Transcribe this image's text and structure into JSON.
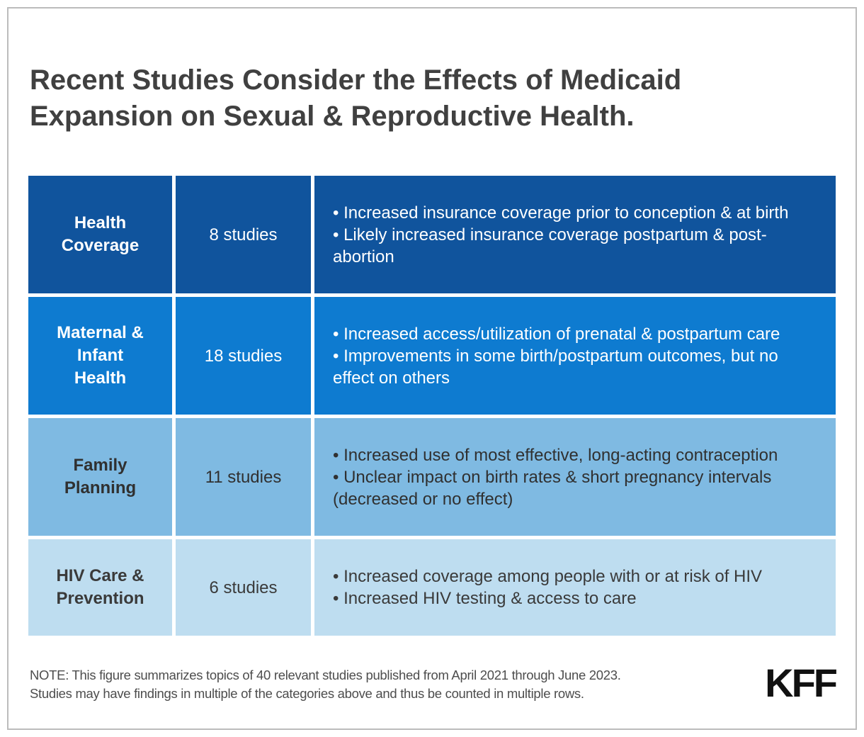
{
  "page": {
    "title": "Recent Studies Consider the Effects of Medicaid Expansion on Sexual & Reproductive Health.",
    "note_lines": [
      "NOTE: This figure summarizes topics of 40 relevant studies published from April 2021 through June 2023.",
      "Studies may have findings in multiple of the categories above and thus be counted in multiple rows."
    ],
    "logo_text": "KFF"
  },
  "colors": {
    "row_backgrounds": [
      "#10549D",
      "#0E7BD0",
      "#7FBAE2",
      "#BEDDF0"
    ],
    "row_text_colors": [
      "#FFFFFF",
      "#FFFFFF",
      "#303030",
      "#3A3A3A"
    ],
    "title_color": "#404040",
    "note_color": "#4D4D4D",
    "logo_color": "#111111",
    "frame_border": "#BCBCBC"
  },
  "table": {
    "rows": [
      {
        "category": "Health Coverage",
        "studies_label": "8 studies",
        "findings": [
          "• Increased insurance coverage prior to conception & at birth",
          "• Likely increased insurance coverage postpartum & post-abortion"
        ]
      },
      {
        "category": "Maternal & Infant Health",
        "studies_label": "18 studies",
        "findings": [
          "• Increased access/utilization of prenatal & postpartum care",
          "• Improvements in some birth/postpartum outcomes, but no effect on others"
        ]
      },
      {
        "category": "Family Planning",
        "studies_label": "11 studies",
        "findings": [
          "• Increased use of most effective, long-acting contraception",
          "• Unclear impact on birth rates & short pregnancy intervals (decreased or no effect)"
        ]
      },
      {
        "category": "HIV Care & Prevention",
        "studies_label": "6 studies",
        "findings": [
          "• Increased coverage among people with or at risk of HIV",
          "• Increased HIV testing & access to care"
        ]
      }
    ]
  },
  "chart_data": {
    "type": "table",
    "title": "Recent Studies Consider the Effects of Medicaid Expansion on Sexual & Reproductive Health.",
    "categories": [
      "Health Coverage",
      "Maternal & Infant Health",
      "Family Planning",
      "HIV Care & Prevention"
    ],
    "values": [
      8,
      18,
      11,
      6
    ],
    "value_unit": "studies",
    "total_studies": 40,
    "study_period": "April 2021 through June 2023",
    "findings_by_category": {
      "Health Coverage": [
        "Increased insurance coverage prior to conception & at birth",
        "Likely increased insurance coverage postpartum & post-abortion"
      ],
      "Maternal & Infant Health": [
        "Increased access/utilization of prenatal & postpartum care",
        "Improvements in some birth/postpartum outcomes, but no effect on others"
      ],
      "Family Planning": [
        "Increased use of most effective, long-acting contraception",
        "Unclear impact on birth rates & short pregnancy intervals (decreased or no effect)"
      ],
      "HIV Care & Prevention": [
        "Increased coverage among people with or at risk of HIV",
        "Increased HIV testing & access to care"
      ]
    },
    "source": "KFF"
  }
}
